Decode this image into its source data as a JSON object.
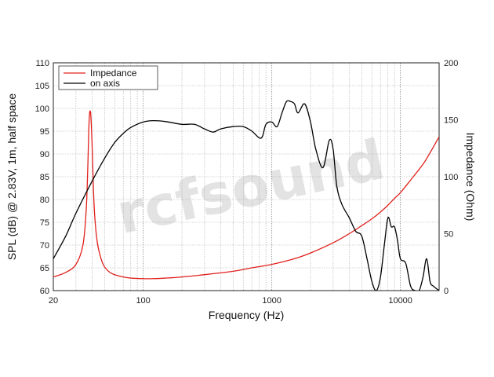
{
  "watermark": {
    "text": "rcfsound"
  },
  "chart_data": {
    "type": "line",
    "title": "",
    "xlabel": "Frequency (Hz)",
    "ylabel": "SPL (dB) @ 2.83V, 1m, half space",
    "y2label": "Impedance (Ohm)",
    "x_scale": "log",
    "xlim": [
      20,
      20000
    ],
    "ylim": [
      60,
      110
    ],
    "y2lim": [
      0,
      200
    ],
    "grid": true,
    "legend_position": "top-left",
    "x_ticks": [
      "20",
      "100",
      "1000",
      "10000"
    ],
    "y_ticks": [
      "60",
      "65",
      "70",
      "75",
      "80",
      "85",
      "90",
      "95",
      "100",
      "105",
      "110"
    ],
    "y2_ticks": [
      "0",
      "50",
      "100",
      "150",
      "200"
    ],
    "series": [
      {
        "name": "Impedance",
        "axis": "right",
        "color": "#e0201b",
        "x": [
          20,
          25,
          30,
          34,
          36,
          37,
          38,
          39,
          40,
          41,
          42,
          44,
          47,
          50,
          55,
          60,
          70,
          80,
          100,
          120,
          150,
          200,
          300,
          500,
          700,
          1000,
          1500,
          2000,
          3000,
          4000,
          5000,
          6000,
          7000,
          8000,
          9000,
          10000,
          12000,
          15000,
          17000,
          20000
        ],
        "y": [
          12,
          16,
          23,
          40,
          70,
          105,
          150,
          156,
          130,
          90,
          65,
          42,
          28,
          21,
          16,
          14,
          12,
          11,
          10.5,
          10.5,
          11,
          12,
          14,
          17,
          20,
          23,
          28,
          33,
          42,
          50,
          57,
          63,
          69,
          75,
          81,
          86,
          97,
          111,
          121,
          135
        ]
      },
      {
        "name": "on axis",
        "axis": "left",
        "color": "#000000",
        "x": [
          20,
          25,
          30,
          40,
          50,
          60,
          70,
          80,
          100,
          120,
          150,
          200,
          250,
          300,
          350,
          400,
          500,
          600,
          700,
          800,
          850,
          900,
          1000,
          1100,
          1200,
          1300,
          1400,
          1500,
          1600,
          1800,
          2000,
          2200,
          2500,
          2800,
          3000,
          3200,
          3500,
          4000,
          4500,
          5000,
          5500,
          6000,
          6500,
          7000,
          7500,
          8000,
          8500,
          9000,
          9500,
          10000,
          11000,
          12000,
          13000,
          14000,
          15000,
          16000,
          17000,
          18000,
          20000
        ],
        "y": [
          67,
          72,
          77,
          84,
          89,
          92.5,
          94.5,
          95.8,
          97,
          97.3,
          97.1,
          96.5,
          96.5,
          95.5,
          94.8,
          95.5,
          96,
          96,
          95,
          93.5,
          94,
          96.5,
          97,
          96,
          99,
          101.5,
          101.5,
          101,
          99,
          101,
          97,
          91,
          87,
          93,
          91,
          83,
          79,
          76,
          73,
          72,
          67,
          62,
          60,
          63,
          70,
          76,
          74,
          74,
          71,
          67,
          66,
          61,
          60,
          60,
          63,
          67,
          62,
          61,
          60
        ]
      }
    ]
  }
}
